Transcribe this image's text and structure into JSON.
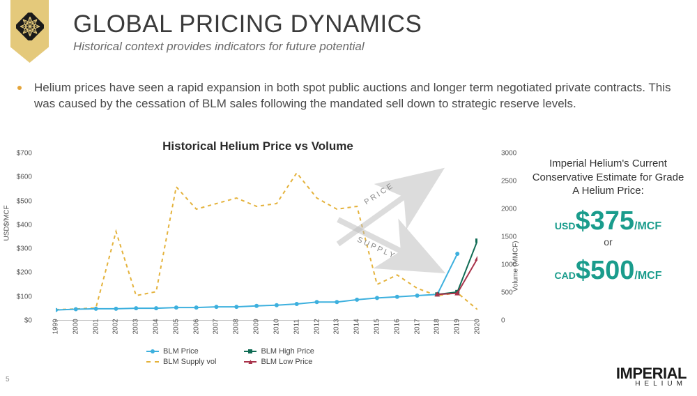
{
  "header": {
    "title": "GLOBAL PRICING DYNAMICS",
    "subtitle": "Historical context provides indicators for future potential"
  },
  "bullet": "Helium prices have seen a rapid expansion in both spot public auctions and longer term negotiated private contracts. This was caused by the cessation of BLM sales following the mandated sell down to strategic reserve levels.",
  "chart": {
    "title": "Historical Helium Price vs Volume",
    "type": "dual-axis-line",
    "y_left": {
      "label": "USD$/MCF",
      "min": 0,
      "max": 700,
      "step": 100,
      "prefix": "$"
    },
    "y_right": {
      "label": "Volume (MMCF)",
      "min": 0,
      "max": 3000,
      "step": 500
    },
    "x_years": [
      "1999",
      "2000",
      "2001",
      "2002",
      "2003",
      "2004",
      "2005",
      "2006",
      "2007",
      "2008",
      "2009",
      "2010",
      "2011",
      "2012",
      "2013",
      "2014",
      "2015",
      "2016",
      "2017",
      "2018",
      "2019",
      "2020"
    ],
    "series": {
      "blm_price": {
        "color": "#3db0de",
        "marker": "circle",
        "dash": "none",
        "width": 2,
        "axis": "left",
        "values": [
          45,
          48,
          50,
          50,
          52,
          52,
          55,
          55,
          58,
          58,
          62,
          65,
          70,
          78,
          78,
          88,
          95,
          100,
          105,
          110,
          280,
          null
        ]
      },
      "blm_supply": {
        "color": "#e4b23b",
        "marker": "none",
        "dash": "5,5",
        "width": 2,
        "axis": "right",
        "values": [
          200,
          210,
          230,
          1600,
          450,
          520,
          2400,
          2000,
          2100,
          2200,
          2050,
          2100,
          2650,
          2200,
          2000,
          2050,
          650,
          820,
          580,
          450,
          500,
          200
        ]
      },
      "blm_high": {
        "color": "#0f6b54",
        "marker": "square",
        "dash": "none",
        "width": 2,
        "axis": "left",
        "values": [
          null,
          null,
          null,
          null,
          null,
          null,
          null,
          null,
          null,
          null,
          null,
          null,
          null,
          null,
          null,
          null,
          null,
          null,
          null,
          110,
          120,
          335
        ]
      },
      "blm_low": {
        "color": "#a8324a",
        "marker": "triangle",
        "dash": "none",
        "width": 2,
        "axis": "left",
        "values": [
          null,
          null,
          null,
          null,
          null,
          null,
          null,
          null,
          null,
          null,
          null,
          null,
          null,
          null,
          null,
          null,
          null,
          null,
          null,
          110,
          115,
          260
        ]
      }
    },
    "legend": [
      {
        "key": "blm_price",
        "label": "BLM Price",
        "color": "#3db0de",
        "marker": "circle",
        "dash": "none"
      },
      {
        "key": "blm_supply",
        "label": "BLM Supply vol",
        "color": "#e4b23b",
        "marker": "none",
        "dash": "5,5"
      },
      {
        "key": "blm_high",
        "label": "BLM High Price",
        "color": "#0f6b54",
        "marker": "square",
        "dash": "none"
      },
      {
        "key": "blm_low",
        "label": "BLM Low Price",
        "color": "#a8324a",
        "marker": "triangle",
        "dash": "none"
      }
    ],
    "annotations": [
      {
        "text": "PRICE",
        "type": "arrow-up"
      },
      {
        "text": "SUPPLY",
        "type": "arrow-down"
      }
    ],
    "background_color": "#ffffff",
    "tick_fontsize": 10
  },
  "sidebar": {
    "lead": "Imperial Helium's Current Conservative Estimate for Grade A Helium Price:",
    "usd_currency": "USD",
    "usd_price": "$375",
    "usd_per": "/MCF",
    "or": "or",
    "cad_currency": "CAD",
    "cad_price": "$500",
    "cad_per": "/MCF",
    "accent_color": "#1a9c8c"
  },
  "footer": {
    "page": "5",
    "brand": "IMPERIAL",
    "brand_sub": "HELIUM"
  },
  "palette": {
    "gold": "#e4c97b",
    "bullet": "#e4a53b",
    "title": "#3a3a3a",
    "subtitle": "#6a6a6a"
  }
}
